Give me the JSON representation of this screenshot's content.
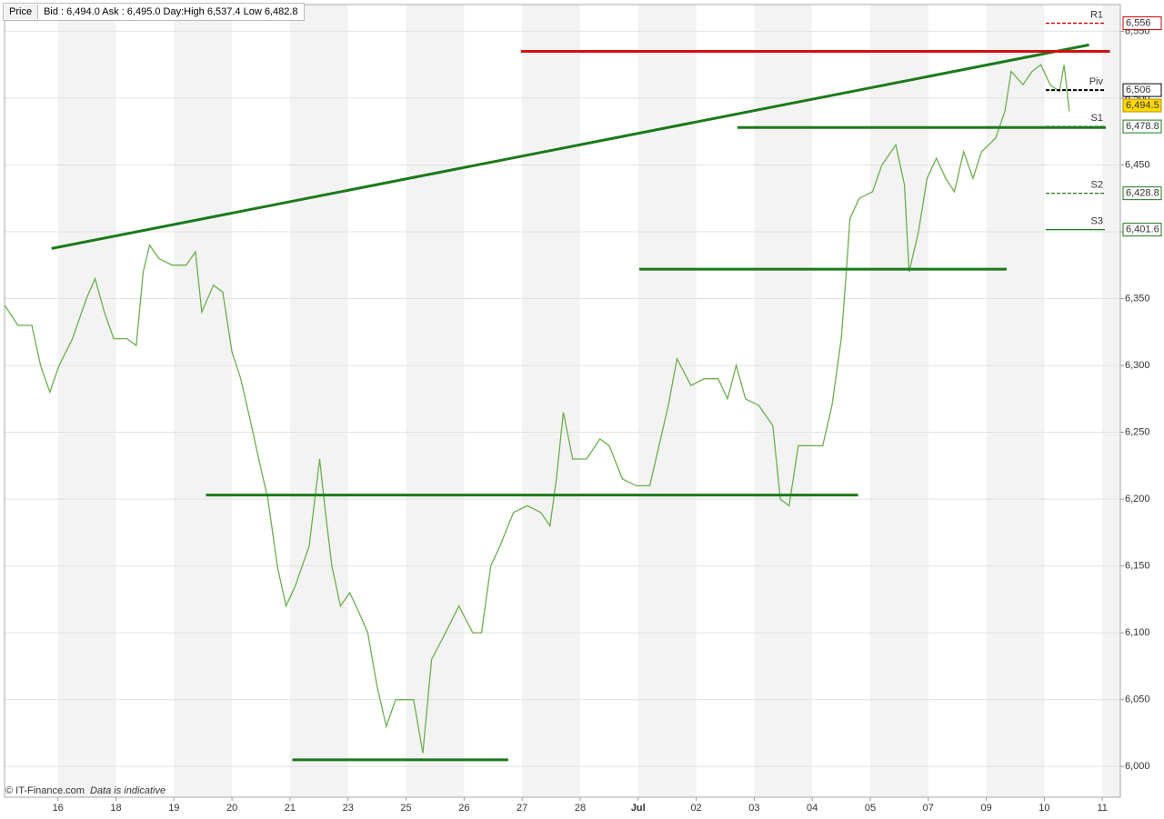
{
  "chart_data": {
    "type": "line",
    "button": "Price",
    "quote": "Bid : 6,494.0 Ask : 6,495.0 Day:High 6,537.4 Low 6,482.8",
    "credit": "© IT-Finance.com",
    "note": "Data is indicative",
    "xlim": [
      -0.92,
      18.31
    ],
    "xticks": [
      {
        "value": 0,
        "label": "16"
      },
      {
        "value": 1,
        "label": "18"
      },
      {
        "value": 2,
        "label": "19"
      },
      {
        "value": 3,
        "label": "20"
      },
      {
        "value": 4,
        "label": "21"
      },
      {
        "value": 5,
        "label": "23"
      },
      {
        "value": 6,
        "label": "25"
      },
      {
        "value": 7,
        "label": "26"
      },
      {
        "value": 8,
        "label": "27"
      },
      {
        "value": 9,
        "label": "28"
      },
      {
        "value": 10,
        "label": "Jul"
      },
      {
        "value": 11,
        "label": "02"
      },
      {
        "value": 12,
        "label": "03"
      },
      {
        "value": 13,
        "label": "04"
      },
      {
        "value": 14,
        "label": "05"
      },
      {
        "value": 15,
        "label": "07"
      },
      {
        "value": 16,
        "label": "09"
      },
      {
        "value": 17,
        "label": "10"
      },
      {
        "value": 18,
        "label": "11"
      }
    ],
    "ylim": [
      5977,
      6570
    ],
    "yticks": [
      {
        "value": 6000,
        "label": "6,000"
      },
      {
        "value": 6050,
        "label": "6,050"
      },
      {
        "value": 6100,
        "label": "6,100"
      },
      {
        "value": 6150,
        "label": "6,150"
      },
      {
        "value": 6200,
        "label": "6,200"
      },
      {
        "value": 6250,
        "label": "6,250"
      },
      {
        "value": 6300,
        "label": "6,300"
      },
      {
        "value": 6350,
        "label": "6,350"
      },
      {
        "value": 6400,
        "label": "6,400"
      },
      {
        "value": 6450,
        "label": "6,450"
      },
      {
        "value": 6500,
        "label": "6,500"
      },
      {
        "value": 6550,
        "label": "6,550"
      }
    ],
    "grid": true,
    "series": [
      {
        "color": "#6ab04c",
        "x": [
          -0.92,
          -0.69,
          -0.45,
          -0.3,
          -0.14,
          0.02,
          0.25,
          0.49,
          0.64,
          0.8,
          0.96,
          1.19,
          1.35,
          1.47,
          1.58,
          1.74,
          1.97,
          2.21,
          2.37,
          2.48,
          2.68,
          2.84,
          3.0,
          3.15,
          3.31,
          3.46,
          3.62,
          3.78,
          3.93,
          4.09,
          4.33,
          4.51,
          4.61,
          4.72,
          4.87,
          5.03,
          5.19,
          5.34,
          5.5,
          5.66,
          5.82,
          5.97,
          6.13,
          6.29,
          6.44,
          6.68,
          6.91,
          7.15,
          7.3,
          7.46,
          7.62,
          7.85,
          8.09,
          8.32,
          8.48,
          8.59,
          8.71,
          8.87,
          9.11,
          9.34,
          9.5,
          9.73,
          9.97,
          10.2,
          10.36,
          10.52,
          10.67,
          10.91,
          11.14,
          11.38,
          11.54,
          11.69,
          11.85,
          12.08,
          12.32,
          12.45,
          12.6,
          12.76,
          13.02,
          13.18,
          13.34,
          13.5,
          13.57,
          13.65,
          13.81,
          14.04,
          14.2,
          14.44,
          14.59,
          14.67,
          14.83,
          14.98,
          15.14,
          15.3,
          15.45,
          15.61,
          15.77,
          15.92,
          16.16,
          16.32,
          16.43,
          16.63,
          16.79,
          16.94,
          17.1,
          17.26,
          17.34,
          17.43
        ],
        "values": [
          6345,
          6330,
          6330,
          6300,
          6280,
          6300,
          6320,
          6350,
          6365,
          6340,
          6320,
          6320,
          6315,
          6370,
          6390,
          6380,
          6375,
          6375,
          6385,
          6340,
          6360,
          6355,
          6310,
          6290,
          6260,
          6230,
          6200,
          6150,
          6120,
          6135,
          6165,
          6230,
          6190,
          6150,
          6120,
          6130,
          6115,
          6100,
          6060,
          6030,
          6050,
          6050,
          6050,
          6010,
          6080,
          6100,
          6120,
          6100,
          6100,
          6150,
          6165,
          6190,
          6195,
          6190,
          6180,
          6215,
          6265,
          6230,
          6230,
          6245,
          6240,
          6215,
          6210,
          6210,
          6240,
          6270,
          6305,
          6285,
          6290,
          6290,
          6275,
          6300,
          6275,
          6270,
          6255,
          6200,
          6195,
          6240,
          6240,
          6240,
          6270,
          6320,
          6360,
          6410,
          6425,
          6430,
          6450,
          6465,
          6435,
          6370,
          6400,
          6440,
          6455,
          6440,
          6430,
          6460,
          6440,
          6460,
          6470,
          6490,
          6520,
          6510,
          6520,
          6525,
          6510,
          6505,
          6525,
          6490
        ]
      }
    ],
    "trendlines": [
      {
        "color": "#1a7a1a",
        "x": [
          -0.11,
          17.77
        ],
        "y": [
          6387.5,
          6539.8
        ]
      },
      {
        "color": "#d01010",
        "x": [
          7.98,
          18.13
        ],
        "y": [
          6535,
          6535
        ]
      },
      {
        "color": "#1a7a1a",
        "x": [
          11.71,
          18.06
        ],
        "y": [
          6478,
          6478
        ]
      },
      {
        "color": "#1a7a1a",
        "x": [
          10.02,
          16.35
        ],
        "y": [
          6372,
          6372
        ]
      },
      {
        "color": "#1a7a1a",
        "x": [
          2.55,
          13.79
        ],
        "y": [
          6203,
          6203
        ]
      },
      {
        "color": "#1a7a1a",
        "x": [
          4.04,
          7.76
        ],
        "y": [
          6005,
          6005
        ]
      }
    ],
    "levels": [
      {
        "name": "R1",
        "value": 6556,
        "label": "6,556",
        "color": "#cc0000",
        "dash": true
      },
      {
        "name": "Piv",
        "value": 6506,
        "label": "6,506",
        "color": "#000000",
        "dash": true
      },
      {
        "name": "S1",
        "value": 6478.8,
        "label": "6,478.8",
        "color": "#1a7a1a",
        "dash": true
      },
      {
        "name": "S2",
        "value": 6428.8,
        "label": "6,428.8",
        "color": "#1a7a1a",
        "dash": true
      },
      {
        "name": "S3",
        "value": 6401.6,
        "label": "6,401.6",
        "color": "#1a7a1a",
        "dash": false
      }
    ],
    "last": {
      "value": 6494.5,
      "label": "6,494.5",
      "color": "#ffd800"
    }
  }
}
